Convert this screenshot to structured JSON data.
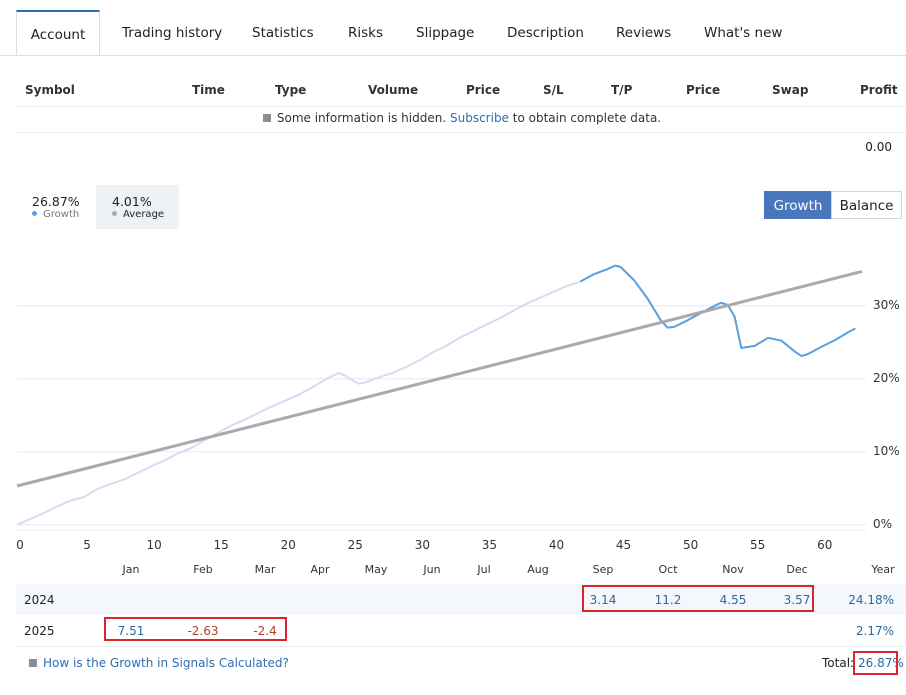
{
  "tabs": [
    {
      "label": "Account",
      "active": true
    },
    {
      "label": "Trading history"
    },
    {
      "label": "Statistics"
    },
    {
      "label": "Risks"
    },
    {
      "label": "Slippage"
    },
    {
      "label": "Description"
    },
    {
      "label": "Reviews"
    },
    {
      "label": "What's new"
    }
  ],
  "table": {
    "headers": [
      "Symbol",
      "Time",
      "Type",
      "Volume",
      "Price",
      "S/L",
      "T/P",
      "Price",
      "Swap",
      "Profit"
    ],
    "notice_before": "Some information is hidden.",
    "notice_link": "Subscribe",
    "notice_after": "to obtain complete data.",
    "profit_total": "0.00"
  },
  "legend": {
    "growth_value": "26.87%",
    "growth_label": "Growth",
    "average_value": "4.01%",
    "average_label": "Average"
  },
  "toggle": {
    "growth": "Growth",
    "balance": "Balance"
  },
  "colors": {
    "growth": "#5a9fe0",
    "history": "#d4dcef",
    "average": "#a8aaad",
    "accent": "#4a76bb"
  },
  "chart_data": {
    "type": "line",
    "x_ticks": [
      "0",
      "5",
      "10",
      "15",
      "20",
      "25",
      "30",
      "35",
      "40",
      "45",
      "50",
      "55",
      "60"
    ],
    "y_ticks": [
      "0%",
      "10%",
      "20%",
      "30%"
    ],
    "xlim": [
      0,
      63
    ],
    "ylim": [
      -1,
      39
    ],
    "series": [
      {
        "x": [
          0,
          1,
          2,
          3,
          4,
          5,
          6,
          7,
          8,
          9,
          10,
          11,
          12,
          13,
          14,
          15,
          16,
          17,
          18,
          19,
          20,
          21,
          22,
          23,
          24,
          24.5,
          25,
          25.5,
          26,
          27,
          28,
          29,
          30,
          31,
          32,
          33,
          34,
          35,
          36,
          37,
          38,
          39,
          40,
          41,
          42
        ],
        "y": [
          0,
          0.8,
          1.6,
          2.5,
          3.3,
          3.8,
          4.9,
          5.6,
          6.2,
          7.1,
          8.0,
          8.8,
          9.8,
          10.5,
          11.6,
          12.6,
          13.6,
          14.4,
          15.3,
          16.2,
          17.0,
          17.8,
          18.8,
          19.9,
          20.8,
          20.4,
          19.8,
          19.3,
          19.5,
          20.2,
          20.8,
          21.6,
          22.5,
          23.6,
          24.5,
          25.6,
          26.5,
          27.4,
          28.3,
          29.3,
          30.3,
          31.1,
          31.9,
          32.7,
          33.3
        ]
      },
      {
        "x": [
          42,
          43,
          44,
          44.6,
          45,
          46,
          47,
          48,
          48.5,
          49,
          50,
          51,
          52,
          52.5,
          53,
          53.5,
          54,
          55,
          56,
          57,
          58,
          58.5,
          59,
          60,
          61,
          62,
          62.5
        ],
        "y": [
          33.3,
          34.3,
          35.0,
          35.5,
          35.3,
          33.5,
          31.0,
          28.0,
          27.0,
          27.1,
          28.0,
          29.0,
          30.0,
          30.4,
          30.1,
          28.5,
          24.2,
          24.5,
          25.6,
          25.2,
          23.7,
          23.1,
          23.4,
          24.4,
          25.3,
          26.4,
          26.87
        ]
      },
      {
        "x": [
          0,
          63
        ],
        "y": [
          5.3,
          34.7
        ]
      }
    ]
  },
  "months": [
    "Jan",
    "Feb",
    "Mar",
    "Apr",
    "May",
    "Jun",
    "Jul",
    "Aug",
    "Sep",
    "Oct",
    "Nov",
    "Dec",
    "Year"
  ],
  "years": [
    {
      "year": "2024",
      "values": [
        "",
        "",
        "",
        "",
        "",
        "",
        "",
        "",
        "3.14",
        "11.2",
        "4.55",
        "3.57"
      ],
      "total": "24.18%"
    },
    {
      "year": "2025",
      "values": [
        "7.51",
        "-2.63",
        "-2.4",
        "",
        "",
        "",
        "",
        "",
        "",
        "",
        "",
        ""
      ],
      "total": "2.17%"
    }
  ],
  "footer": {
    "link": "How is the Growth in Signals Calculated?",
    "total_label": "Total:",
    "total_value": "26.87%"
  }
}
